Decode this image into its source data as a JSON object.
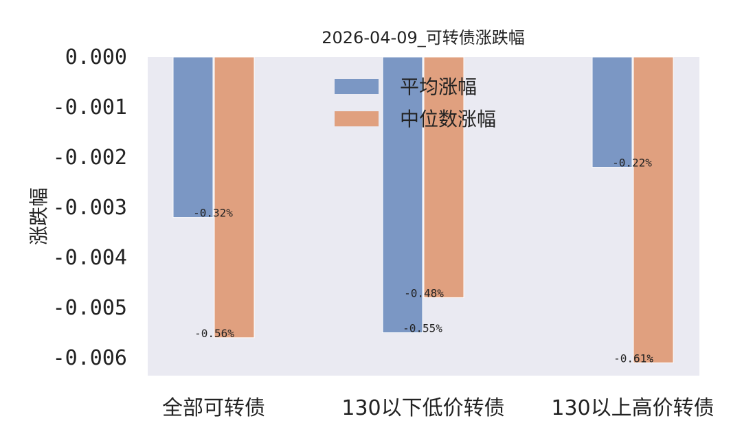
{
  "chart_data": {
    "type": "bar",
    "title": "2026-04-09_可转债涨跌幅",
    "xlabel": "",
    "ylabel": "涨跌幅",
    "categories": [
      "全部可转债",
      "130以下低价转债",
      "130以上高价转债"
    ],
    "series": [
      {
        "name": "平均涨幅",
        "color": "#7b97c4",
        "values": [
          -0.0032,
          -0.0055,
          -0.0022
        ],
        "labels": [
          "-0.32%",
          "-0.55%",
          "-0.22%"
        ]
      },
      {
        "name": "中位数涨幅",
        "color": "#e0a07f",
        "values": [
          -0.0056,
          -0.0048,
          -0.0061
        ],
        "labels": [
          "-0.56%",
          "-0.48%",
          "-0.61%"
        ]
      }
    ],
    "ylim": [
      -0.0063,
      0.0
    ],
    "yticks": [
      0.0,
      -0.001,
      -0.002,
      -0.003,
      -0.004,
      -0.005,
      -0.006
    ],
    "ytick_labels": [
      "0.000",
      "-0.001",
      "-0.002",
      "-0.003",
      "-0.004",
      "-0.005",
      "-0.006"
    ],
    "grid": false,
    "legend": "upper-center",
    "background": "#eaeaf2"
  }
}
